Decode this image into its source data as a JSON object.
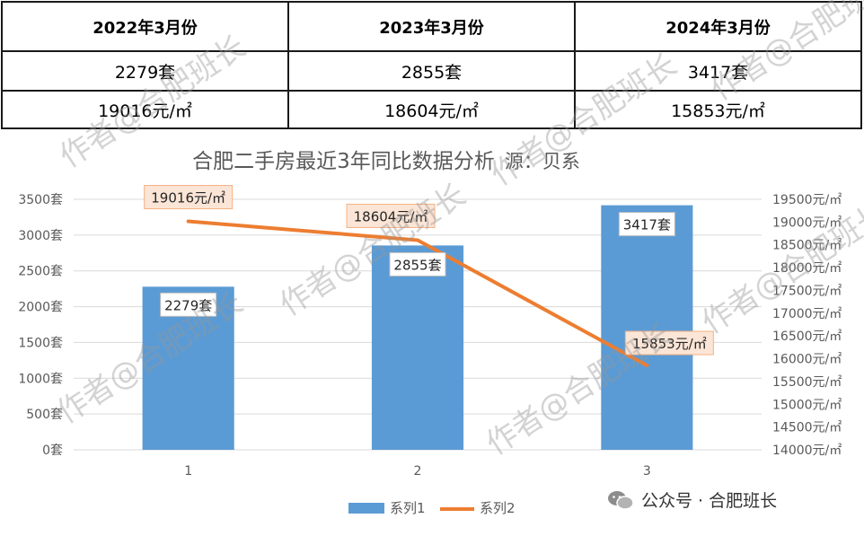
{
  "table": {
    "headers": [
      "2022年3月份",
      "2023年3月份",
      "2024年3月份"
    ],
    "counts": [
      "2279套",
      "2855套",
      "3417套"
    ],
    "prices": [
      "19016元/㎡",
      "18604元/㎡",
      "15853元/㎡"
    ]
  },
  "watermark": "作者@合肥班长",
  "badge": {
    "text": "公众号 · 合肥班长",
    "icon": "wechat-icon"
  },
  "chart_data": {
    "type": "bar",
    "title": "合肥二手房最近3年同比数据分析",
    "subtitle": "源：贝系",
    "categories": [
      "1",
      "2",
      "3"
    ],
    "series": [
      {
        "name": "系列1",
        "kind": "bar",
        "axis": "left",
        "values": [
          2279,
          2855,
          3417
        ],
        "labels": [
          "2279套",
          "2855套",
          "3417套"
        ],
        "color": "#5B9BD5"
      },
      {
        "name": "系列2",
        "kind": "line",
        "axis": "right",
        "values": [
          19016,
          18604,
          15853
        ],
        "labels": [
          "19016元/㎡",
          "18604元/㎡",
          "15853元/㎡"
        ],
        "color": "#ED7D31"
      }
    ],
    "y_left": {
      "ylim": [
        0,
        3500
      ],
      "ticks": [
        0,
        500,
        1000,
        1500,
        2000,
        2500,
        3000,
        3500
      ],
      "tick_labels": [
        "0套",
        "500套",
        "1000套",
        "1500套",
        "2000套",
        "2500套",
        "3000套",
        "3500套"
      ]
    },
    "y_right": {
      "ylim": [
        14000,
        19500
      ],
      "ticks": [
        14000,
        14500,
        15000,
        15500,
        16000,
        16500,
        17000,
        17500,
        18000,
        18500,
        19000,
        19500
      ],
      "tick_labels": [
        "14000元/㎡",
        "14500元/㎡",
        "15000元/㎡",
        "15500元/㎡",
        "16000元/㎡",
        "16500元/㎡",
        "17000元/㎡",
        "17500元/㎡",
        "18000元/㎡",
        "18500元/㎡",
        "19000元/㎡",
        "19500元/㎡"
      ]
    },
    "grid": true,
    "legend": "bottom-center"
  }
}
